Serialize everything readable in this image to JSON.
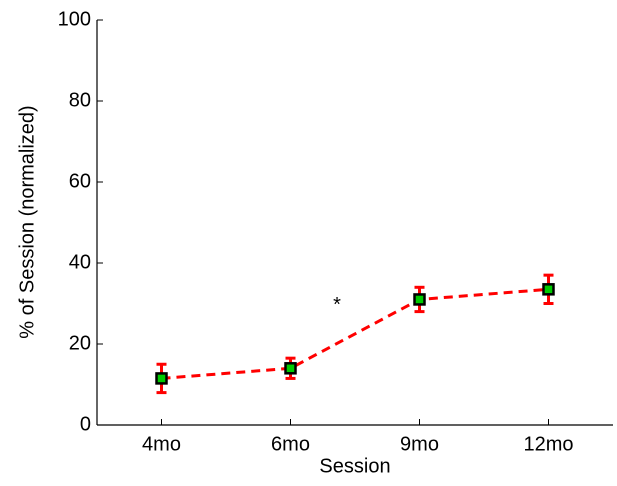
{
  "chart_data": {
    "type": "errorbar",
    "xlabel": "Session",
    "ylabel": "% of Session (normalized)",
    "categories": [
      "4mo",
      "6mo",
      "9mo",
      "12mo"
    ],
    "series": [
      {
        "values": [
          11.5,
          14,
          31,
          33.5
        ],
        "errors": [
          3.5,
          2.5,
          3,
          3.5
        ],
        "connected": [
          true,
          true,
          true,
          false
        ],
        "line_color": "#ff0000",
        "marker_color": "#00cc00",
        "error_color": "#ff0000"
      }
    ],
    "annotations": [
      {
        "text": "*"
      }
    ],
    "ylim": [
      0,
      100
    ],
    "yticks": [
      0,
      20,
      40,
      60,
      80,
      100
    ]
  }
}
